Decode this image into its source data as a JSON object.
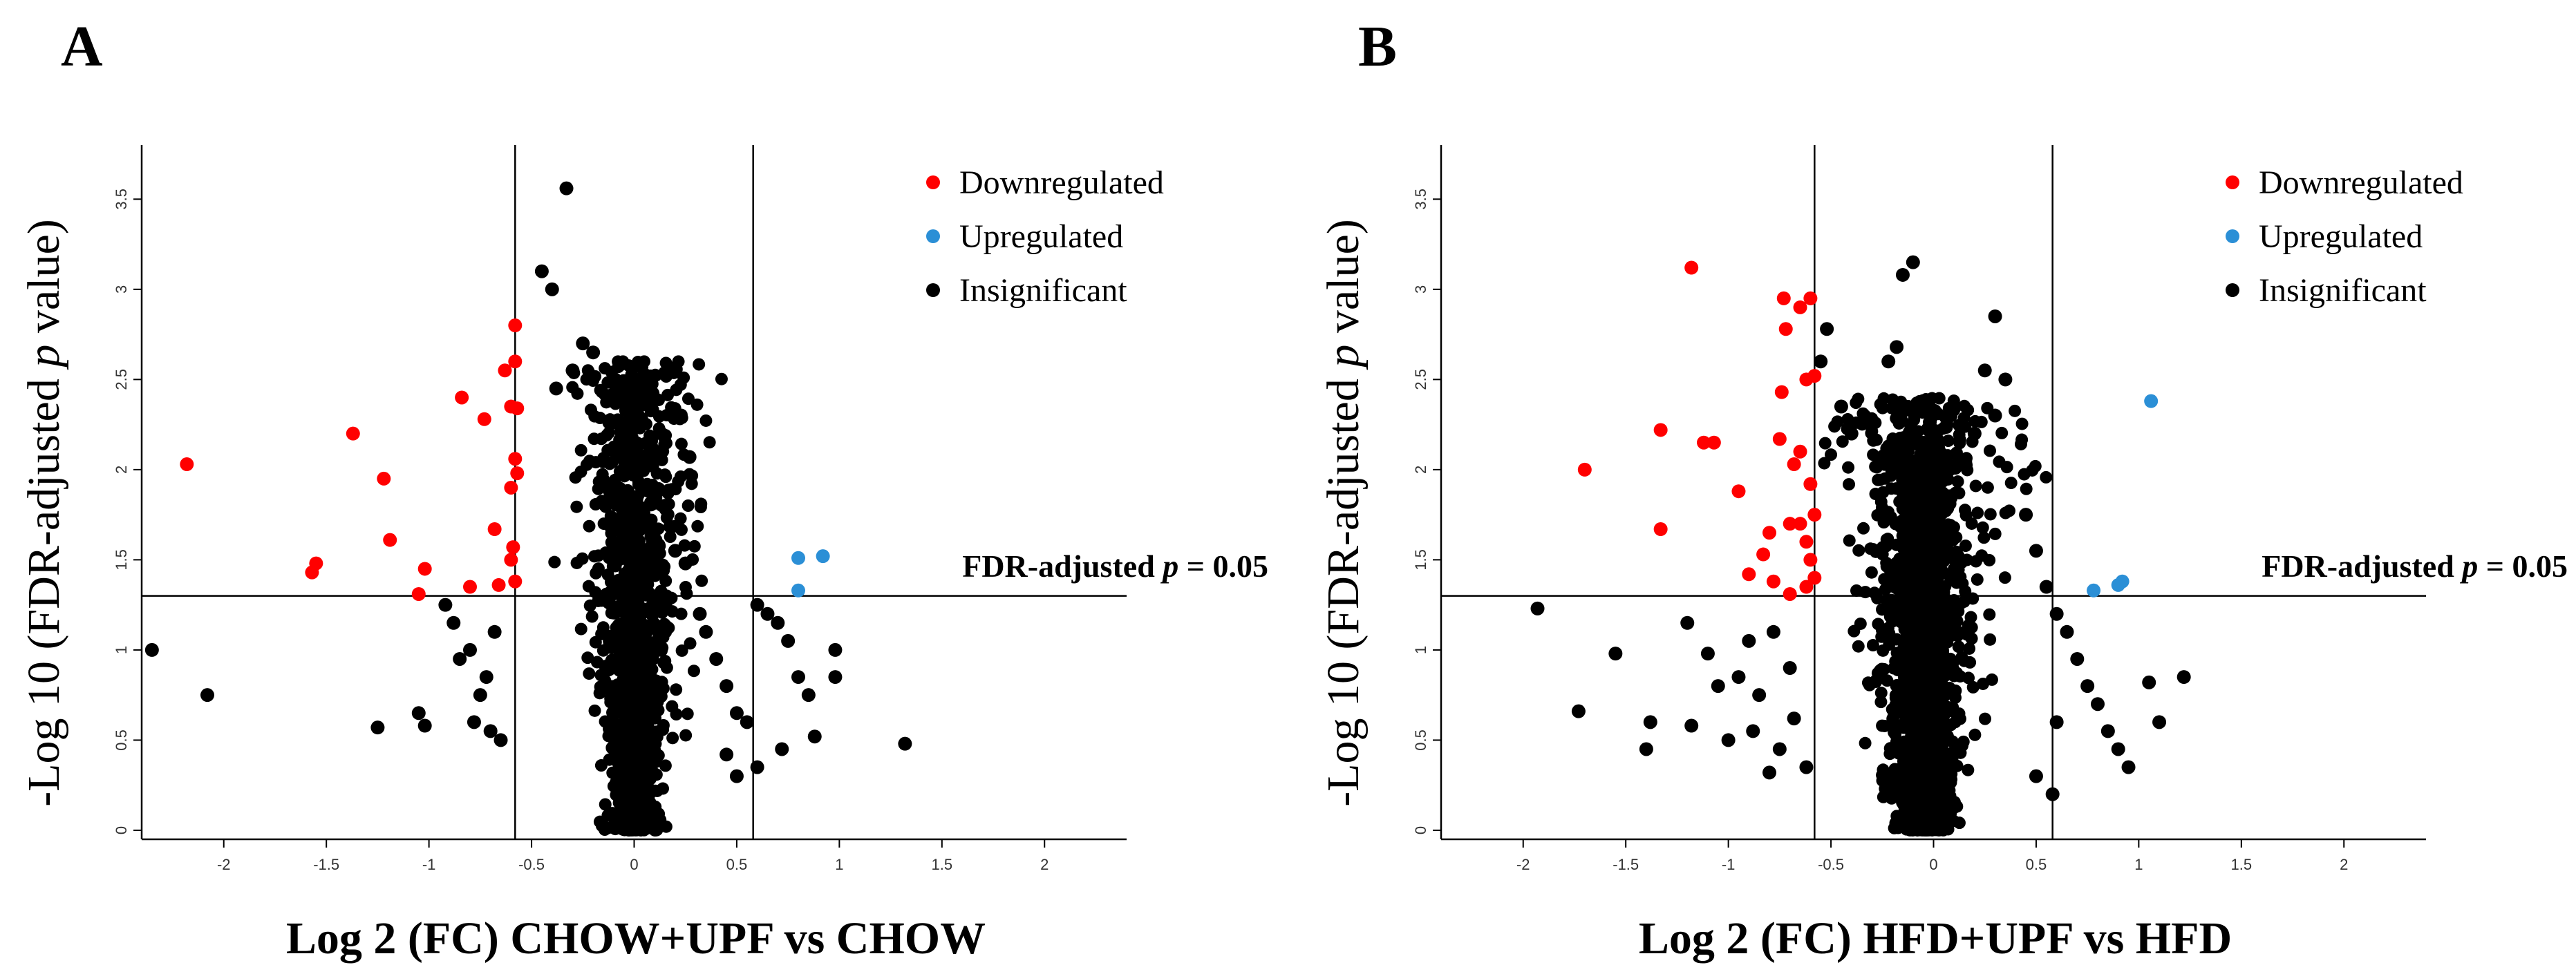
{
  "colors": {
    "downregulated": "#ff0000",
    "upregulated": "#2b8fd6",
    "insignificant": "#000000",
    "axis": "#000000"
  },
  "chart_data": [
    {
      "type": "scatter",
      "panel_label": "A",
      "xlabel": "Log 2 (FC) CHOW+UPF vs CHOW",
      "ylabel_parts": [
        "-Log 10 (FDR-adjusted ",
        "p",
        " value)"
      ],
      "xlim": [
        -2.4,
        2.4
      ],
      "ylim": [
        -0.05,
        3.8
      ],
      "x_ticks": [
        -2,
        -1.5,
        -1,
        -0.5,
        0,
        0.5,
        1,
        1.5,
        2
      ],
      "x_tick_labels": [
        "-2",
        "-1.5",
        "-1",
        "-0.5",
        "0",
        "0.5",
        "1",
        "1.5",
        "2"
      ],
      "y_ticks": [
        0,
        0.5,
        1,
        1.5,
        2,
        2.5,
        3,
        3.5
      ],
      "y_tick_labels": [
        "0",
        "0.5",
        "1",
        "1.5",
        "2",
        "2.5",
        "3",
        "3.5"
      ],
      "vlines": [
        -0.58,
        0.58
      ],
      "hline": 1.3,
      "threshold_label_parts": [
        "FDR-adjusted ",
        "p",
        " = 0.05"
      ],
      "legend": [
        {
          "label": "Downregulated",
          "color": "#ff0000"
        },
        {
          "label": "Upregulated",
          "color": "#2b8fd6"
        },
        {
          "label": "Insignificant",
          "color": "#000000"
        }
      ],
      "series": [
        {
          "name": "Downregulated",
          "color": "#ff0000",
          "points": [
            [
              -2.18,
              2.03
            ],
            [
              -1.55,
              1.48
            ],
            [
              -1.57,
              1.43
            ],
            [
              -1.37,
              2.2
            ],
            [
              -1.22,
              1.95
            ],
            [
              -1.19,
              1.61
            ],
            [
              -1.02,
              1.45
            ],
            [
              -1.05,
              1.31
            ],
            [
              -0.84,
              2.4
            ],
            [
              -0.8,
              1.35
            ],
            [
              -0.73,
              2.28
            ],
            [
              -0.68,
              1.67
            ],
            [
              -0.66,
              1.36
            ],
            [
              -0.63,
              2.55
            ],
            [
              -0.6,
              2.35
            ],
            [
              -0.6,
              1.5
            ],
            [
              -0.58,
              2.8
            ],
            [
              -0.58,
              2.6
            ],
            [
              -0.58,
              2.06
            ],
            [
              -0.57,
              2.34
            ],
            [
              -0.6,
              1.9
            ],
            [
              -0.57,
              1.98
            ],
            [
              -0.59,
              1.57
            ],
            [
              -0.58,
              1.38
            ]
          ]
        },
        {
          "name": "Upregulated",
          "color": "#2b8fd6",
          "points": [
            [
              0.8,
              1.51
            ],
            [
              0.92,
              1.52
            ],
            [
              0.8,
              1.33
            ]
          ]
        },
        {
          "name": "Insignificant",
          "color": "#000000",
          "points": [
            [
              -2.35,
              1.0
            ],
            [
              -2.08,
              0.75
            ],
            [
              -1.25,
              0.57
            ],
            [
              -1.05,
              0.65
            ],
            [
              -1.02,
              0.58
            ],
            [
              -0.92,
              1.25
            ],
            [
              -0.88,
              1.15
            ],
            [
              -0.85,
              0.95
            ],
            [
              -0.8,
              1.0
            ],
            [
              -0.78,
              0.6
            ],
            [
              -0.75,
              0.75
            ],
            [
              -0.72,
              0.85
            ],
            [
              -0.7,
              0.55
            ],
            [
              -0.68,
              1.1
            ],
            [
              -0.65,
              0.5
            ],
            [
              -0.33,
              3.56
            ],
            [
              -0.45,
              3.1
            ],
            [
              -0.4,
              3.0
            ],
            [
              -0.2,
              2.65
            ],
            [
              -0.25,
              2.7
            ],
            [
              -0.3,
              2.55
            ],
            [
              -0.38,
              2.45
            ],
            [
              0.27,
              2.07
            ],
            [
              0.1,
              1.88
            ],
            [
              0.15,
              1.8
            ],
            [
              0.2,
              1.55
            ],
            [
              0.25,
              1.48
            ],
            [
              0.32,
              1.2
            ],
            [
              0.35,
              1.1
            ],
            [
              0.4,
              0.95
            ],
            [
              0.45,
              0.8
            ],
            [
              0.5,
              0.65
            ],
            [
              0.55,
              0.6
            ],
            [
              0.6,
              1.25
            ],
            [
              0.65,
              1.2
            ],
            [
              0.7,
              1.15
            ],
            [
              0.75,
              1.05
            ],
            [
              0.8,
              0.85
            ],
            [
              0.85,
              0.75
            ],
            [
              0.98,
              1.0
            ],
            [
              0.98,
              0.85
            ],
            [
              0.88,
              0.52
            ],
            [
              0.72,
              0.45
            ],
            [
              0.6,
              0.35
            ],
            [
              1.32,
              0.48
            ],
            [
              0.45,
              0.42
            ],
            [
              0.5,
              0.3
            ]
          ]
        }
      ],
      "cloud": {
        "x_center": 0.0,
        "x_spread": 0.2,
        "y_max": 2.6,
        "count": 1500,
        "seed": 11
      }
    },
    {
      "type": "scatter",
      "panel_label": "B",
      "xlabel": "Log 2 (FC) HFD+UPF vs HFD",
      "ylabel_parts": [
        "-Log 10 (FDR-adjusted ",
        "p",
        " value)"
      ],
      "xlim": [
        -2.4,
        2.4
      ],
      "ylim": [
        -0.05,
        3.8
      ],
      "x_ticks": [
        -2,
        -1.5,
        -1,
        -0.5,
        0,
        0.5,
        1,
        1.5,
        2
      ],
      "x_tick_labels": [
        "-2",
        "-1.5",
        "-1",
        "-0.5",
        "0",
        "0.5",
        "1",
        "1.5",
        "2"
      ],
      "y_ticks": [
        0,
        0.5,
        1,
        1.5,
        2,
        2.5,
        3,
        3.5
      ],
      "y_tick_labels": [
        "0",
        "0.5",
        "1",
        "1.5",
        "2",
        "2.5",
        "3",
        "3.5"
      ],
      "vlines": [
        -0.58,
        0.58
      ],
      "hline": 1.3,
      "threshold_label_parts": [
        "FDR-adjusted ",
        "p",
        " = 0.05"
      ],
      "legend": [
        {
          "label": "Downregulated",
          "color": "#ff0000"
        },
        {
          "label": "Upregulated",
          "color": "#2b8fd6"
        },
        {
          "label": "Insignificant",
          "color": "#000000"
        }
      ],
      "series": [
        {
          "name": "Downregulated",
          "color": "#ff0000",
          "points": [
            [
              -1.7,
              2.0
            ],
            [
              -1.33,
              2.22
            ],
            [
              -1.12,
              2.15
            ],
            [
              -1.07,
              2.15
            ],
            [
              -1.33,
              1.67
            ],
            [
              -1.18,
              3.12
            ],
            [
              -0.95,
              1.88
            ],
            [
              -0.9,
              1.42
            ],
            [
              -0.83,
              1.53
            ],
            [
              -0.8,
              1.65
            ],
            [
              -0.78,
              1.38
            ],
            [
              -0.75,
              2.17
            ],
            [
              -0.74,
              2.43
            ],
            [
              -0.72,
              2.78
            ],
            [
              -0.73,
              2.95
            ],
            [
              -0.65,
              2.9
            ],
            [
              -0.6,
              2.95
            ],
            [
              -0.62,
              2.5
            ],
            [
              -0.58,
              2.52
            ],
            [
              -0.65,
              1.7
            ],
            [
              -0.65,
              2.1
            ],
            [
              -0.68,
              2.03
            ],
            [
              -0.7,
              1.7
            ],
            [
              -0.62,
              1.6
            ],
            [
              -0.6,
              1.92
            ],
            [
              -0.58,
              1.75
            ],
            [
              -0.6,
              1.5
            ],
            [
              -0.58,
              1.4
            ],
            [
              -0.62,
              1.35
            ],
            [
              -0.7,
              1.31
            ]
          ]
        },
        {
          "name": "Upregulated",
          "color": "#2b8fd6",
          "points": [
            [
              1.06,
              2.38
            ],
            [
              0.92,
              1.38
            ],
            [
              0.9,
              1.36
            ],
            [
              0.78,
              1.33
            ]
          ]
        },
        {
          "name": "Insignificant",
          "color": "#000000",
          "points": [
            [
              -1.93,
              1.23
            ],
            [
              -1.73,
              0.66
            ],
            [
              -1.55,
              0.98
            ],
            [
              -1.4,
              0.45
            ],
            [
              -1.38,
              0.6
            ],
            [
              -1.2,
              1.15
            ],
            [
              -1.18,
              0.58
            ],
            [
              -1.1,
              0.98
            ],
            [
              -1.05,
              0.8
            ],
            [
              -1.0,
              0.5
            ],
            [
              -0.95,
              0.85
            ],
            [
              -0.9,
              1.05
            ],
            [
              -0.88,
              0.55
            ],
            [
              -0.85,
              0.75
            ],
            [
              -0.8,
              0.32
            ],
            [
              -0.78,
              1.1
            ],
            [
              -0.75,
              0.45
            ],
            [
              -0.7,
              0.9
            ],
            [
              -0.68,
              0.62
            ],
            [
              -0.62,
              0.35
            ],
            [
              -0.52,
              2.78
            ],
            [
              -0.55,
              2.6
            ],
            [
              -0.45,
              2.35
            ],
            [
              -0.4,
              2.2
            ],
            [
              -0.15,
              3.08
            ],
            [
              -0.1,
              3.15
            ],
            [
              -0.18,
              2.68
            ],
            [
              -0.22,
              2.6
            ],
            [
              0.3,
              2.85
            ],
            [
              0.25,
              2.55
            ],
            [
              0.35,
              2.5
            ],
            [
              0.3,
              2.3
            ],
            [
              0.2,
              2.2
            ],
            [
              0.45,
              1.75
            ],
            [
              0.5,
              1.55
            ],
            [
              0.55,
              1.35
            ],
            [
              0.6,
              1.2
            ],
            [
              0.65,
              1.1
            ],
            [
              0.7,
              0.95
            ],
            [
              0.75,
              0.8
            ],
            [
              0.8,
              0.7
            ],
            [
              0.85,
              0.55
            ],
            [
              0.9,
              0.45
            ],
            [
              1.05,
              0.82
            ],
            [
              1.1,
              0.6
            ],
            [
              1.22,
              0.85
            ],
            [
              0.95,
              0.35
            ],
            [
              0.6,
              0.6
            ],
            [
              0.58,
              0.2
            ],
            [
              0.5,
              0.3
            ]
          ]
        }
      ],
      "cloud": {
        "x_center": -0.05,
        "x_spread": 0.24,
        "y_max": 2.4,
        "count": 2000,
        "seed": 29
      }
    }
  ]
}
